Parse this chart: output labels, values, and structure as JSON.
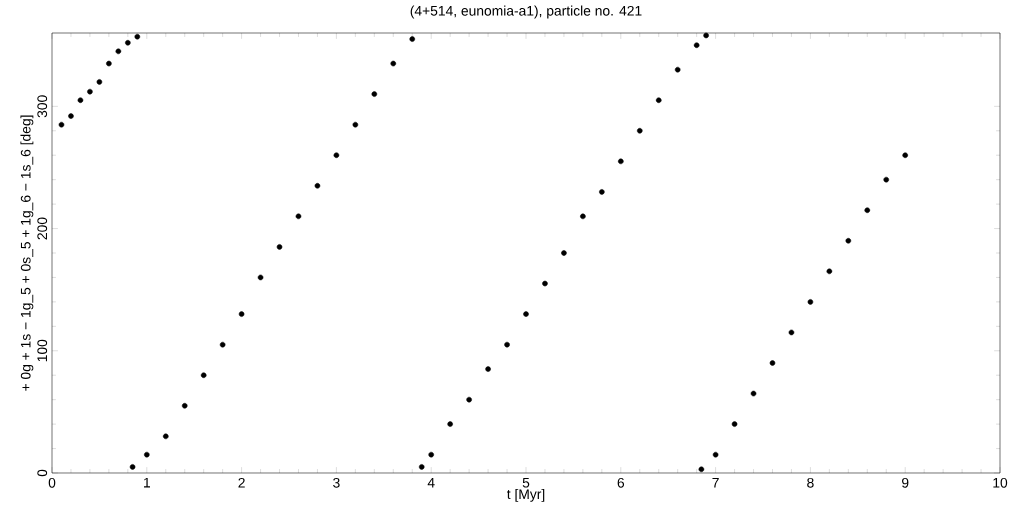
{
  "chart_data": {
    "type": "scatter",
    "title": "(4+514, eunomia-a1), particle no. 421",
    "xlabel": "t [Myr]",
    "ylabel": "+ 0g + 1s − 1g_5 + 0s_5 + 1g_6 − 1s_6 [deg]",
    "x": [
      0.1,
      0.2,
      0.3,
      0.4,
      0.5,
      0.6,
      0.7,
      0.8,
      0.9,
      0.85,
      1.0,
      1.2,
      1.4,
      1.6,
      1.8,
      2.0,
      2.2,
      2.4,
      2.6,
      2.8,
      3.0,
      3.2,
      3.4,
      3.6,
      3.8,
      3.9,
      4.0,
      4.2,
      4.4,
      4.6,
      4.8,
      5.0,
      5.2,
      5.4,
      5.6,
      5.8,
      6.0,
      6.2,
      6.4,
      6.6,
      6.8,
      6.9,
      6.85,
      7.0,
      7.2,
      7.4,
      7.6,
      7.8,
      8.0,
      8.2,
      8.4,
      8.6,
      8.8,
      9.0
    ],
    "values": [
      285,
      292,
      305,
      312,
      320,
      335,
      345,
      352,
      357,
      5,
      15,
      30,
      55,
      80,
      105,
      130,
      160,
      185,
      210,
      235,
      260,
      285,
      310,
      335,
      355,
      5,
      15,
      40,
      60,
      85,
      105,
      130,
      155,
      180,
      210,
      230,
      255,
      280,
      305,
      330,
      350,
      358,
      3,
      15,
      40,
      65,
      90,
      115,
      140,
      165,
      190,
      215,
      240,
      260
    ],
    "color": "#000000",
    "xlim": [
      0,
      10
    ],
    "ylim": [
      0,
      360
    ],
    "xticks": [
      0,
      1,
      2,
      3,
      4,
      5,
      6,
      7,
      8,
      9,
      10
    ],
    "yticks": [
      0,
      100,
      200,
      300
    ]
  }
}
